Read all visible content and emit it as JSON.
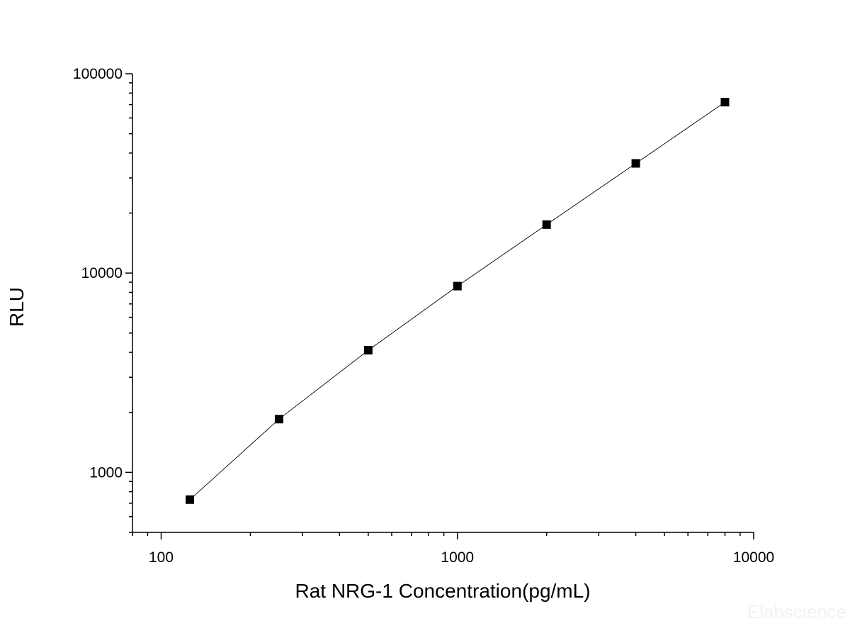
{
  "chart_data": {
    "type": "scatter",
    "xlabel": "Rat NRG-1 Concentration(pg/mL)",
    "ylabel": "RLU",
    "x_scale": "log",
    "y_scale": "log",
    "xlim": [
      80,
      10000
    ],
    "ylim": [
      500,
      100000
    ],
    "x_ticks": [
      100,
      1000,
      10000
    ],
    "x_tick_labels": [
      "100",
      "1000",
      "10000"
    ],
    "y_ticks": [
      1000,
      10000,
      100000
    ],
    "y_tick_labels": [
      "1000",
      "10000",
      "100000"
    ],
    "grid": false,
    "series": [
      {
        "x": [
          125,
          250,
          500,
          1000,
          2000,
          4000,
          8000
        ],
        "y": [
          730,
          1850,
          4100,
          8600,
          17500,
          35500,
          72000
        ],
        "marker": "square",
        "line": true,
        "color": "#000000"
      }
    ],
    "watermark": "Elabscience"
  }
}
